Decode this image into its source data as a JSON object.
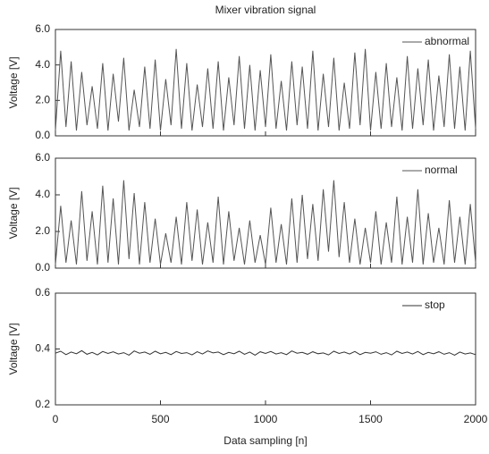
{
  "chart_data": [
    {
      "type": "line",
      "title": "Mixer vibration signal",
      "y_label": "Voltage [V]",
      "xlim": [
        0,
        2000
      ],
      "x": [
        0,
        25,
        50,
        75,
        100,
        125,
        150,
        175,
        200,
        225,
        250,
        275,
        300,
        325,
        350,
        375,
        400,
        425,
        450,
        475,
        500,
        525,
        550,
        575,
        600,
        625,
        650,
        675,
        700,
        725,
        750,
        775,
        800,
        825,
        850,
        875,
        900,
        925,
        950,
        975,
        1000,
        1025,
        1050,
        1075,
        1100,
        1125,
        1150,
        1175,
        1200,
        1225,
        1250,
        1275,
        1300,
        1325,
        1350,
        1375,
        1400,
        1425,
        1450,
        1475,
        1500,
        1525,
        1550,
        1575,
        1600,
        1625,
        1650,
        1675,
        1700,
        1725,
        1750,
        1775,
        1800,
        1825,
        1850,
        1875,
        1900,
        1925,
        1950,
        1975,
        2000
      ],
      "ylim": [
        0,
        6
      ],
      "yticks": [
        {
          "value": 0,
          "label": "0.0"
        },
        {
          "value": 2,
          "label": "2.0"
        },
        {
          "value": 4,
          "label": "4.0"
        },
        {
          "value": 6,
          "label": "6.0"
        }
      ],
      "legend": "upper right",
      "series": [
        {
          "name": "abnormal",
          "color": "#555555",
          "values": [
            0.3,
            4.8,
            0.5,
            4.2,
            0.3,
            3.6,
            0.6,
            2.8,
            0.4,
            4.1,
            0.3,
            3.5,
            0.8,
            4.4,
            0.3,
            2.6,
            0.5,
            3.9,
            0.4,
            4.3,
            0.3,
            3.2,
            0.6,
            4.9,
            0.4,
            4.1,
            0.3,
            2.9,
            0.5,
            3.8,
            0.4,
            4.2,
            0.3,
            3.3,
            0.6,
            4.5,
            0.4,
            4.0,
            0.3,
            3.7,
            0.5,
            4.6,
            0.4,
            3.1,
            0.3,
            4.2,
            0.6,
            3.9,
            0.4,
            4.8,
            0.3,
            3.5,
            0.5,
            4.4,
            0.3,
            3.0,
            0.4,
            4.7,
            0.6,
            4.9,
            0.3,
            3.6,
            0.4,
            4.1,
            0.5,
            3.3,
            0.3,
            4.5,
            0.4,
            3.8,
            0.6,
            4.3,
            0.3,
            3.4,
            0.5,
            4.6,
            0.4,
            3.9,
            0.3,
            4.8,
            0.4
          ]
        }
      ]
    },
    {
      "type": "line",
      "y_label": "Voltage [V]",
      "xlim": [
        0,
        2000
      ],
      "x": [
        0,
        25,
        50,
        75,
        100,
        125,
        150,
        175,
        200,
        225,
        250,
        275,
        300,
        325,
        350,
        375,
        400,
        425,
        450,
        475,
        500,
        525,
        550,
        575,
        600,
        625,
        650,
        675,
        700,
        725,
        750,
        775,
        800,
        825,
        850,
        875,
        900,
        925,
        950,
        975,
        1000,
        1025,
        1050,
        1075,
        1100,
        1125,
        1150,
        1175,
        1200,
        1225,
        1250,
        1275,
        1300,
        1325,
        1350,
        1375,
        1400,
        1425,
        1450,
        1475,
        1500,
        1525,
        1550,
        1575,
        1600,
        1625,
        1650,
        1675,
        1700,
        1725,
        1750,
        1775,
        1800,
        1825,
        1850,
        1875,
        1900,
        1925,
        1950,
        1975,
        2000
      ],
      "ylim": [
        0,
        6
      ],
      "yticks": [
        {
          "value": 0,
          "label": "0.0"
        },
        {
          "value": 2,
          "label": "2.0"
        },
        {
          "value": 4,
          "label": "4.0"
        },
        {
          "value": 6,
          "label": "6.0"
        }
      ],
      "legend": "upper right",
      "series": [
        {
          "name": "normal",
          "color": "#555555",
          "values": [
            0.2,
            3.4,
            0.3,
            2.6,
            0.2,
            4.2,
            0.4,
            3.1,
            0.2,
            4.5,
            0.3,
            3.8,
            0.2,
            4.8,
            0.5,
            4.1,
            0.2,
            3.6,
            0.3,
            2.7,
            0.2,
            1.9,
            0.3,
            2.8,
            0.2,
            3.6,
            0.4,
            3.2,
            0.2,
            2.5,
            0.3,
            3.9,
            0.2,
            3.1,
            0.4,
            2.2,
            0.2,
            2.6,
            0.3,
            1.8,
            0.2,
            3.3,
            0.3,
            2.4,
            0.2,
            3.8,
            0.3,
            4.0,
            0.5,
            3.5,
            0.4,
            4.3,
            0.9,
            4.8,
            0.6,
            3.6,
            0.3,
            2.7,
            0.2,
            2.2,
            0.3,
            3.1,
            0.2,
            2.5,
            0.3,
            3.9,
            0.2,
            2.8,
            0.3,
            4.3,
            0.2,
            3.0,
            0.3,
            2.2,
            0.2,
            3.7,
            0.3,
            2.8,
            0.2,
            3.5,
            0.3
          ]
        }
      ]
    },
    {
      "type": "line",
      "y_label": "Voltage [V]",
      "x_label": "Data sampling [n]",
      "xlim": [
        0,
        2000
      ],
      "xticks": [
        0,
        500,
        1000,
        1500,
        2000
      ],
      "x": [
        0,
        25,
        50,
        75,
        100,
        125,
        150,
        175,
        200,
        225,
        250,
        275,
        300,
        325,
        350,
        375,
        400,
        425,
        450,
        475,
        500,
        525,
        550,
        575,
        600,
        625,
        650,
        675,
        700,
        725,
        750,
        775,
        800,
        825,
        850,
        875,
        900,
        925,
        950,
        975,
        1000,
        1025,
        1050,
        1075,
        1100,
        1125,
        1150,
        1175,
        1200,
        1225,
        1250,
        1275,
        1300,
        1325,
        1350,
        1375,
        1400,
        1425,
        1450,
        1475,
        1500,
        1525,
        1550,
        1575,
        1600,
        1625,
        1650,
        1675,
        1700,
        1725,
        1750,
        1775,
        1800,
        1825,
        1850,
        1875,
        1900,
        1925,
        1950,
        1975,
        2000
      ],
      "ylim": [
        0.2,
        0.6
      ],
      "yticks": [
        0.2,
        0.4,
        0.6
      ],
      "legend": "upper right",
      "series": [
        {
          "name": "stop",
          "color": "#333333",
          "values": [
            0.385,
            0.392,
            0.38,
            0.389,
            0.383,
            0.394,
            0.381,
            0.388,
            0.379,
            0.391,
            0.384,
            0.39,
            0.382,
            0.387,
            0.378,
            0.393,
            0.385,
            0.389,
            0.381,
            0.392,
            0.383,
            0.388,
            0.38,
            0.391,
            0.384,
            0.387,
            0.379,
            0.39,
            0.382,
            0.393,
            0.386,
            0.389,
            0.38,
            0.388,
            0.383,
            0.392,
            0.381,
            0.389,
            0.378,
            0.39,
            0.384,
            0.391,
            0.382,
            0.387,
            0.38,
            0.393,
            0.385,
            0.388,
            0.381,
            0.39,
            0.383,
            0.386,
            0.379,
            0.392,
            0.384,
            0.389,
            0.382,
            0.391,
            0.38,
            0.388,
            0.385,
            0.39,
            0.381,
            0.387,
            0.379,
            0.392,
            0.384,
            0.389,
            0.382,
            0.391,
            0.38,
            0.388,
            0.383,
            0.39,
            0.381,
            0.387,
            0.378,
            0.389,
            0.382,
            0.386,
            0.38
          ]
        }
      ]
    }
  ]
}
